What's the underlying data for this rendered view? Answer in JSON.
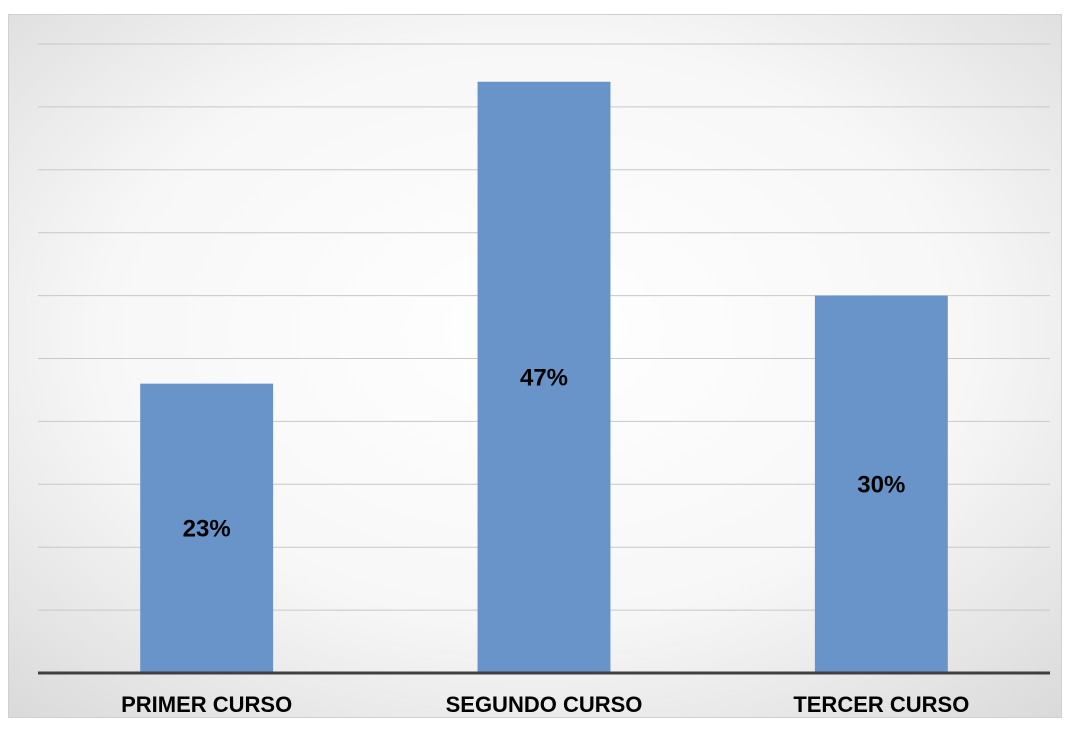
{
  "chart_data": {
    "type": "bar",
    "categories": [
      "PRIMER CURSO",
      "SEGUNDO CURSO",
      "TERCER CURSO"
    ],
    "values": [
      23,
      47,
      30
    ],
    "value_labels": [
      "23%",
      "47%",
      "30%"
    ],
    "color": "#6894c9",
    "ylim": [
      0,
      50
    ],
    "yticks": [
      0,
      5,
      10,
      15,
      20,
      25,
      30,
      35,
      40,
      45,
      50
    ],
    "grid": true
  }
}
